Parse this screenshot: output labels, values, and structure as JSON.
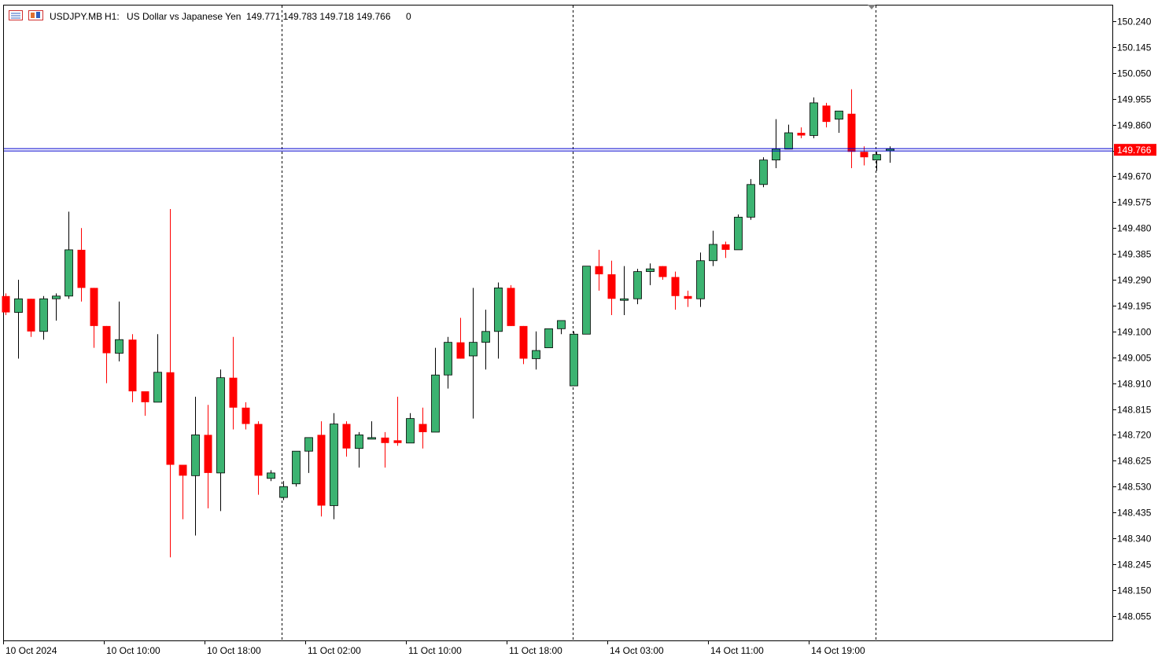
{
  "header": {
    "symbol": "USDJPY.MB",
    "timeframe": "H1:",
    "description": "US Dollar vs Japanese Yen",
    "ohlc": "149.771 149.783 149.718 149.766",
    "volume": "0",
    "icons": [
      "menu-icon",
      "chart-window-icon"
    ]
  },
  "price_tag": {
    "value": "149.766",
    "color": "#ff0000"
  },
  "colors": {
    "bull": "#3cb371",
    "bear": "#ff0000",
    "bid_line": "#0000cd",
    "ask_line": "#cd0000",
    "period_sep": "#000000"
  },
  "chart_data": {
    "type": "candlestick",
    "title": "",
    "grid": false,
    "ylim": [
      147.95,
      150.31
    ],
    "y_ticks": [
      "150.240",
      "150.145",
      "150.050",
      "149.955",
      "149.860",
      "149.765",
      "149.670",
      "149.575",
      "149.480",
      "149.385",
      "149.290",
      "149.195",
      "149.100",
      "149.005",
      "148.910",
      "148.815",
      "148.720",
      "148.625",
      "148.530",
      "148.435",
      "148.340",
      "148.245",
      "148.150",
      "148.055"
    ],
    "x_labels": [
      "10 Oct 2024",
      "10 Oct 10:00",
      "10 Oct 18:00",
      "11 Oct 02:00",
      "11 Oct 10:00",
      "11 Oct 18:00",
      "14 Oct 03:00",
      "14 Oct 11:00",
      "14 Oct 19:00"
    ],
    "current_price": 149.766,
    "candles": [
      {
        "o": 149.23,
        "h": 149.24,
        "l": 149.16,
        "c": 149.17
      },
      {
        "o": 149.17,
        "h": 149.29,
        "l": 149.0,
        "c": 149.22
      },
      {
        "o": 149.22,
        "h": 149.22,
        "l": 149.08,
        "c": 149.1
      },
      {
        "o": 149.1,
        "h": 149.23,
        "l": 149.07,
        "c": 149.22
      },
      {
        "o": 149.22,
        "h": 149.24,
        "l": 149.14,
        "c": 149.23
      },
      {
        "o": 149.23,
        "h": 149.54,
        "l": 149.22,
        "c": 149.4
      },
      {
        "o": 149.4,
        "h": 149.48,
        "l": 149.21,
        "c": 149.26
      },
      {
        "o": 149.26,
        "h": 149.26,
        "l": 149.04,
        "c": 149.12
      },
      {
        "o": 149.12,
        "h": 149.12,
        "l": 148.91,
        "c": 149.02
      },
      {
        "o": 149.02,
        "h": 149.21,
        "l": 148.99,
        "c": 149.07
      },
      {
        "o": 149.07,
        "h": 149.09,
        "l": 148.84,
        "c": 148.88
      },
      {
        "o": 148.88,
        "h": 148.88,
        "l": 148.79,
        "c": 148.84
      },
      {
        "o": 148.84,
        "h": 149.09,
        "l": 148.84,
        "c": 148.95
      },
      {
        "o": 148.95,
        "h": 149.55,
        "l": 148.27,
        "c": 148.61
      },
      {
        "o": 148.61,
        "h": 148.61,
        "l": 148.41,
        "c": 148.57
      },
      {
        "o": 148.57,
        "h": 148.86,
        "l": 148.35,
        "c": 148.72
      },
      {
        "o": 148.72,
        "h": 148.83,
        "l": 148.45,
        "c": 148.58
      },
      {
        "o": 148.58,
        "h": 148.96,
        "l": 148.44,
        "c": 148.93
      },
      {
        "o": 148.93,
        "h": 149.08,
        "l": 148.74,
        "c": 148.82
      },
      {
        "o": 148.82,
        "h": 148.84,
        "l": 148.74,
        "c": 148.76
      },
      {
        "o": 148.76,
        "h": 148.77,
        "l": 148.5,
        "c": 148.57
      },
      {
        "o": 148.56,
        "h": 148.59,
        "l": 148.55,
        "c": 148.58
      },
      {
        "o": 148.49,
        "h": 148.55,
        "l": 148.48,
        "c": 148.53
      },
      {
        "o": 148.54,
        "h": 148.66,
        "l": 148.53,
        "c": 148.66
      },
      {
        "o": 148.66,
        "h": 148.71,
        "l": 148.58,
        "c": 148.71
      },
      {
        "o": 148.72,
        "h": 148.77,
        "l": 148.42,
        "c": 148.46
      },
      {
        "o": 148.46,
        "h": 148.8,
        "l": 148.41,
        "c": 148.76
      },
      {
        "o": 148.76,
        "h": 148.77,
        "l": 148.64,
        "c": 148.67
      },
      {
        "o": 148.67,
        "h": 148.73,
        "l": 148.6,
        "c": 148.72
      },
      {
        "o": 148.71,
        "h": 148.77,
        "l": 148.71,
        "c": 148.71
      },
      {
        "o": 148.71,
        "h": 148.73,
        "l": 148.6,
        "c": 148.69
      },
      {
        "o": 148.7,
        "h": 148.86,
        "l": 148.68,
        "c": 148.69
      },
      {
        "o": 148.69,
        "h": 148.8,
        "l": 148.69,
        "c": 148.78
      },
      {
        "o": 148.76,
        "h": 148.82,
        "l": 148.67,
        "c": 148.73
      },
      {
        "o": 148.73,
        "h": 149.04,
        "l": 148.73,
        "c": 148.94
      },
      {
        "o": 148.94,
        "h": 149.08,
        "l": 148.89,
        "c": 149.06
      },
      {
        "o": 149.06,
        "h": 149.15,
        "l": 149.0,
        "c": 149.0
      },
      {
        "o": 149.01,
        "h": 149.26,
        "l": 148.78,
        "c": 149.06
      },
      {
        "o": 149.06,
        "h": 149.18,
        "l": 148.96,
        "c": 149.1
      },
      {
        "o": 149.1,
        "h": 149.28,
        "l": 149.0,
        "c": 149.26
      },
      {
        "o": 149.26,
        "h": 149.27,
        "l": 149.12,
        "c": 149.12
      },
      {
        "o": 149.12,
        "h": 149.12,
        "l": 148.98,
        "c": 149.0
      },
      {
        "o": 149.0,
        "h": 149.1,
        "l": 148.96,
        "c": 149.03
      },
      {
        "o": 149.04,
        "h": 149.11,
        "l": 149.04,
        "c": 149.11
      },
      {
        "o": 149.11,
        "h": 149.14,
        "l": 149.09,
        "c": 149.14
      },
      {
        "o": 148.9,
        "h": 149.1,
        "l": 148.9,
        "c": 149.09
      },
      {
        "o": 149.09,
        "h": 149.34,
        "l": 149.09,
        "c": 149.34
      },
      {
        "o": 149.34,
        "h": 149.4,
        "l": 149.25,
        "c": 149.31
      },
      {
        "o": 149.31,
        "h": 149.36,
        "l": 149.16,
        "c": 149.22
      },
      {
        "o": 149.22,
        "h": 149.34,
        "l": 149.16,
        "c": 149.22
      },
      {
        "o": 149.22,
        "h": 149.33,
        "l": 149.2,
        "c": 149.32
      },
      {
        "o": 149.32,
        "h": 149.35,
        "l": 149.27,
        "c": 149.33
      },
      {
        "o": 149.34,
        "h": 149.34,
        "l": 149.29,
        "c": 149.3
      },
      {
        "o": 149.3,
        "h": 149.32,
        "l": 149.18,
        "c": 149.23
      },
      {
        "o": 149.23,
        "h": 149.25,
        "l": 149.19,
        "c": 149.22
      },
      {
        "o": 149.22,
        "h": 149.39,
        "l": 149.19,
        "c": 149.36
      },
      {
        "o": 149.36,
        "h": 149.47,
        "l": 149.34,
        "c": 149.42
      },
      {
        "o": 149.42,
        "h": 149.43,
        "l": 149.37,
        "c": 149.4
      },
      {
        "o": 149.4,
        "h": 149.53,
        "l": 149.4,
        "c": 149.52
      },
      {
        "o": 149.52,
        "h": 149.66,
        "l": 149.51,
        "c": 149.64
      },
      {
        "o": 149.64,
        "h": 149.74,
        "l": 149.63,
        "c": 149.73
      },
      {
        "o": 149.73,
        "h": 149.88,
        "l": 149.7,
        "c": 149.77
      },
      {
        "o": 149.77,
        "h": 149.86,
        "l": 149.77,
        "c": 149.83
      },
      {
        "o": 149.83,
        "h": 149.85,
        "l": 149.81,
        "c": 149.82
      },
      {
        "o": 149.82,
        "h": 149.96,
        "l": 149.81,
        "c": 149.94
      },
      {
        "o": 149.93,
        "h": 149.94,
        "l": 149.85,
        "c": 149.87
      },
      {
        "o": 149.88,
        "h": 149.91,
        "l": 149.83,
        "c": 149.91
      },
      {
        "o": 149.9,
        "h": 149.99,
        "l": 149.7,
        "c": 149.76
      },
      {
        "o": 149.76,
        "h": 149.78,
        "l": 149.71,
        "c": 149.74
      },
      {
        "o": 149.73,
        "h": 149.76,
        "l": 149.69,
        "c": 149.75
      },
      {
        "o": 149.77,
        "h": 149.78,
        "l": 149.72,
        "c": 149.77
      }
    ]
  }
}
